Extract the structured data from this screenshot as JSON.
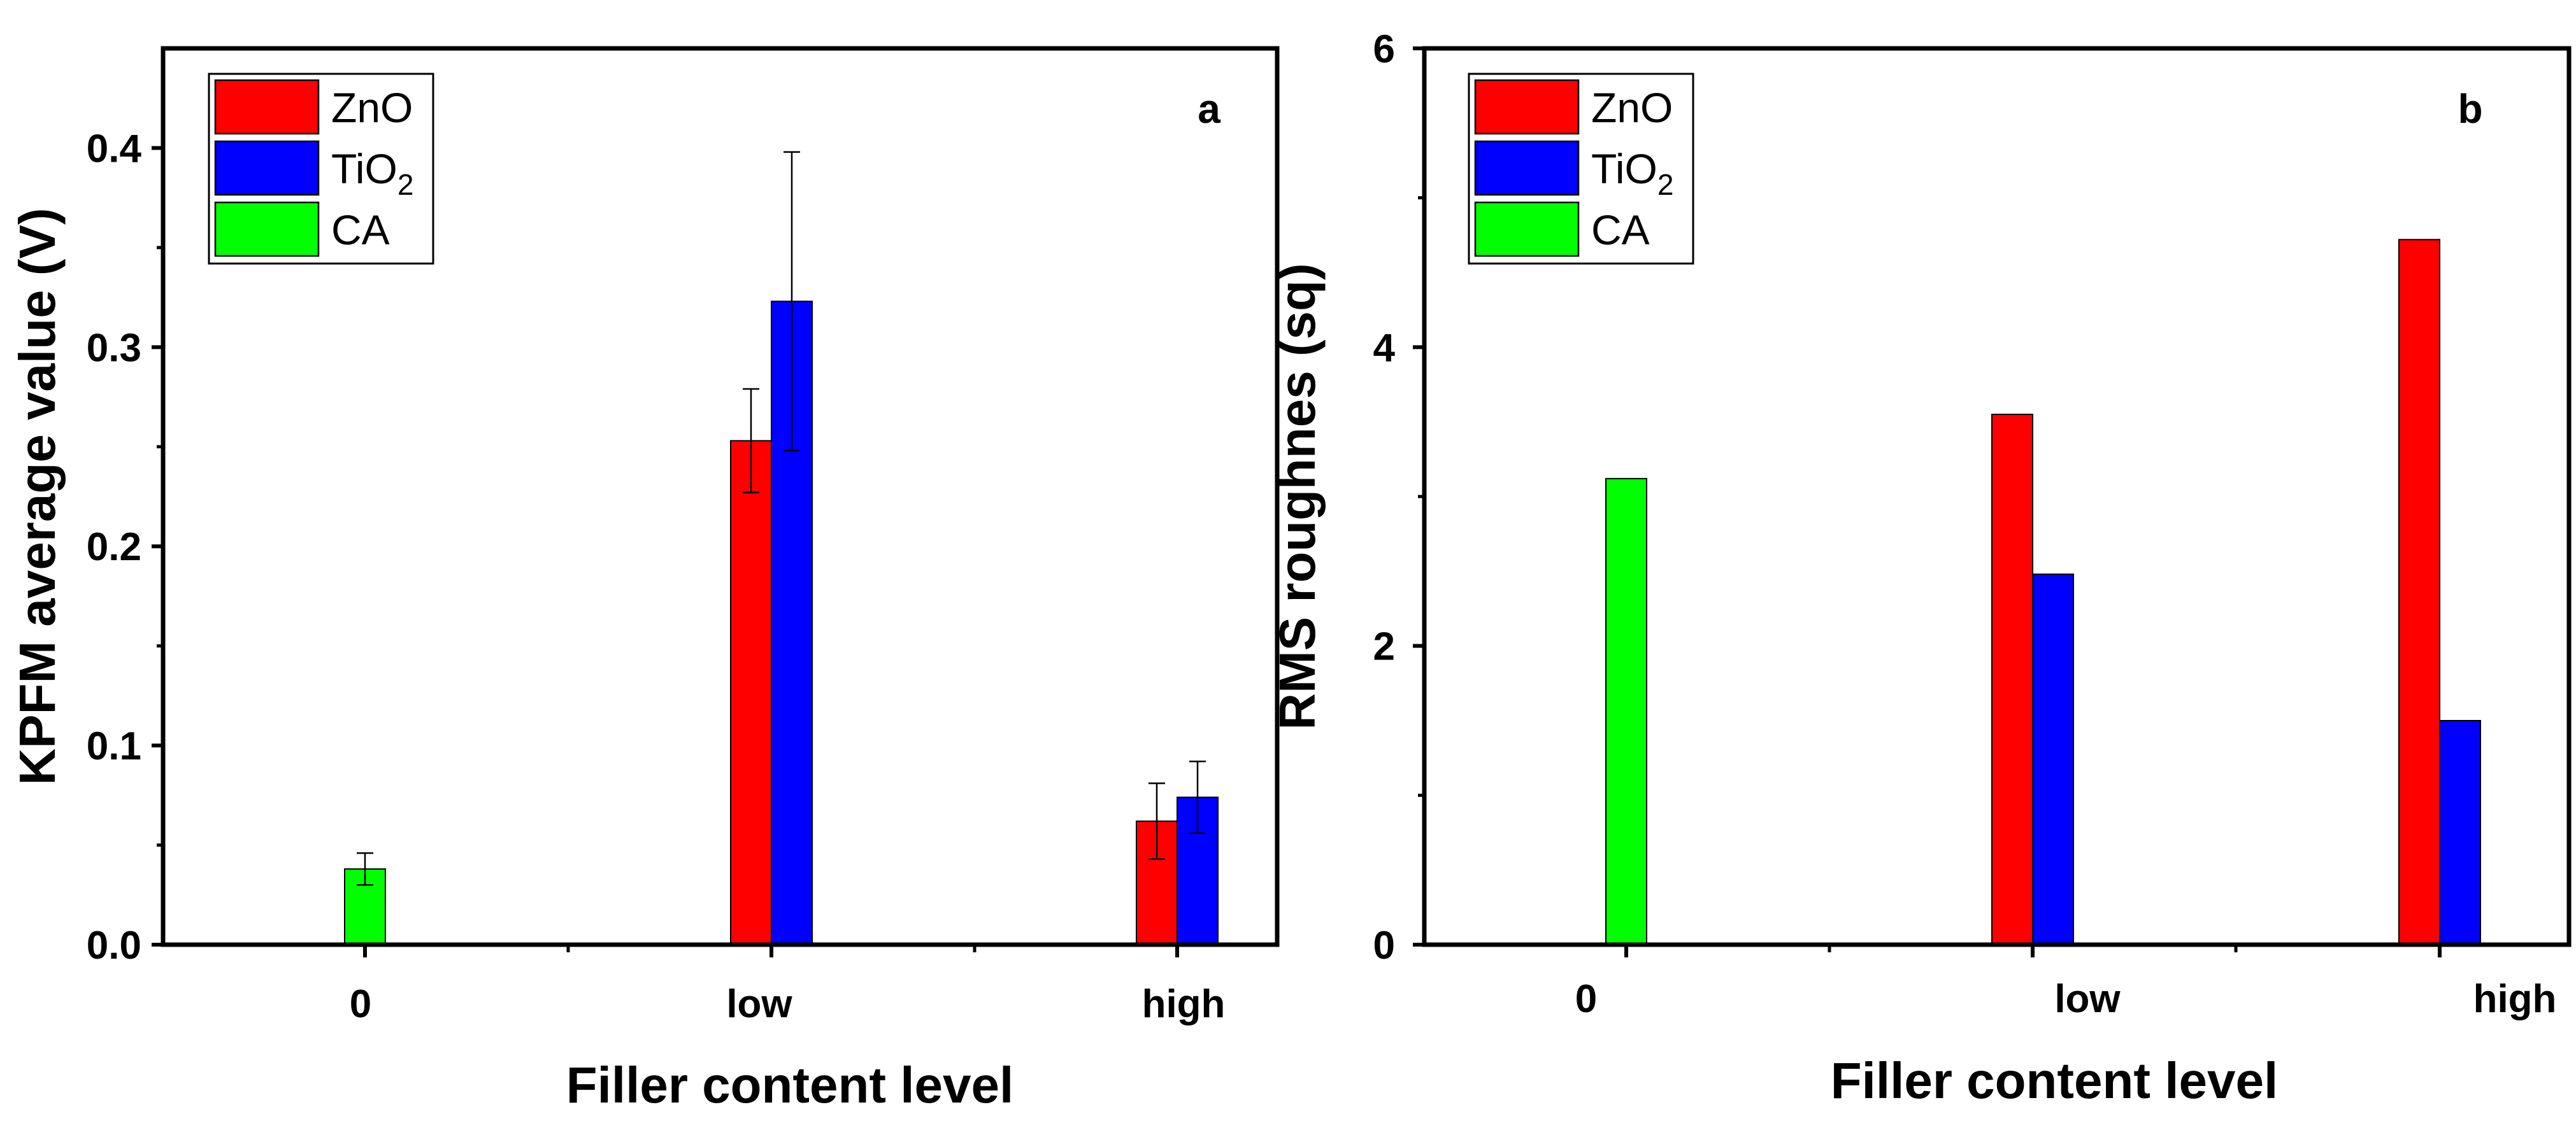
{
  "chart_data": [
    {
      "type": "bar",
      "panel_label": "a",
      "title": "",
      "xlabel": "Filler content level",
      "ylabel": "KPFM average value (V)",
      "categories": [
        "0",
        "low",
        "high"
      ],
      "ylim": [
        0,
        0.45
      ],
      "yticks": [
        "0.0",
        "0.1",
        "0.2",
        "0.3",
        "0.4"
      ],
      "legend_position": "top-left",
      "series": [
        {
          "name": "ZnO",
          "sub": "",
          "color": "#ff0000",
          "values": [
            null,
            0.253,
            0.062
          ],
          "errors": [
            null,
            0.026,
            0.019
          ]
        },
        {
          "name": "TiO",
          "sub": "2",
          "color": "#0000ff",
          "values": [
            null,
            0.323,
            0.074
          ],
          "errors": [
            null,
            0.075,
            0.018
          ]
        },
        {
          "name": "CA",
          "sub": "",
          "color": "#00ff00",
          "values": [
            0.038,
            null,
            null
          ],
          "errors": [
            0.008,
            null,
            null
          ]
        }
      ]
    },
    {
      "type": "bar",
      "panel_label": "b",
      "title": "",
      "xlabel": "Filler content level",
      "ylabel": "RMS roughnes (sq)",
      "categories": [
        "0",
        "low",
        "high"
      ],
      "ylim": [
        0,
        6
      ],
      "yticks": [
        "0",
        "2",
        "4",
        "6"
      ],
      "legend_position": "top-left",
      "series": [
        {
          "name": "ZnO",
          "sub": "",
          "color": "#ff0000",
          "values": [
            null,
            3.55,
            4.72
          ],
          "errors": [
            null,
            null,
            null
          ]
        },
        {
          "name": "TiO",
          "sub": "2",
          "color": "#0000ff",
          "values": [
            null,
            2.48,
            1.5
          ],
          "errors": [
            null,
            null,
            null
          ]
        },
        {
          "name": "CA",
          "sub": "",
          "color": "#00ff00",
          "values": [
            3.12,
            null,
            null
          ],
          "errors": [
            null,
            null,
            null
          ]
        }
      ]
    }
  ]
}
